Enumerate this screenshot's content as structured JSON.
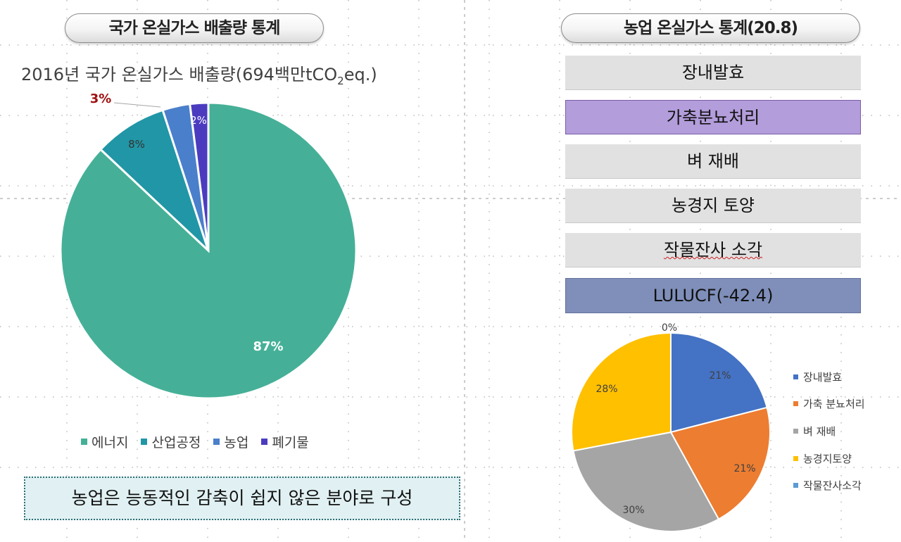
{
  "left_panel": {
    "header": "국가 온실가스 배출량 통계",
    "chart_title_main": "2016년 국가 온실가스 배출량(694백만tCO",
    "chart_title_sub": "2",
    "chart_title_end": "eq.)",
    "note": "농업은 능동적인 감축이 쉽지 않은 분야로 구성"
  },
  "right_panel": {
    "header": "농업 온실가스 통계(20.8)",
    "categories": [
      {
        "label": "장내발효"
      },
      {
        "label": "가축분뇨처리"
      },
      {
        "label": "벼 재배"
      },
      {
        "label": "농경지 토양"
      },
      {
        "label": "작물잔사 소각"
      },
      {
        "label": "LULUCF(-42.4)"
      }
    ]
  },
  "colors": {
    "energy": "#45b097",
    "industry": "#2196a6",
    "agriculture": "#4a7fcb",
    "waste": "#4b3cbf",
    "enteric": "#4472c4",
    "manure": "#ed7d31",
    "rice": "#a5a5a5",
    "soil": "#ffc000",
    "residue": "#5b9bd5",
    "highlight_red": "#a01010"
  },
  "chart_data": [
    {
      "type": "pie",
      "title": "2016년 국가 온실가스 배출량(694백만tCO2eq.)",
      "categories": [
        "에너지",
        "산업공정",
        "농업",
        "폐기물"
      ],
      "values": [
        87,
        8,
        3,
        2
      ],
      "labels": [
        "87%",
        "8%",
        "3%",
        "2%"
      ],
      "legend_position": "bottom"
    },
    {
      "type": "pie",
      "categories": [
        "장내발효",
        "가축 분뇨처리",
        "벼 재배",
        "농경지토양",
        "작물잔사소각"
      ],
      "values": [
        21,
        21,
        30,
        28,
        0
      ],
      "labels": [
        "21%",
        "21%",
        "30%",
        "28%",
        "0%"
      ],
      "legend_position": "right"
    }
  ]
}
